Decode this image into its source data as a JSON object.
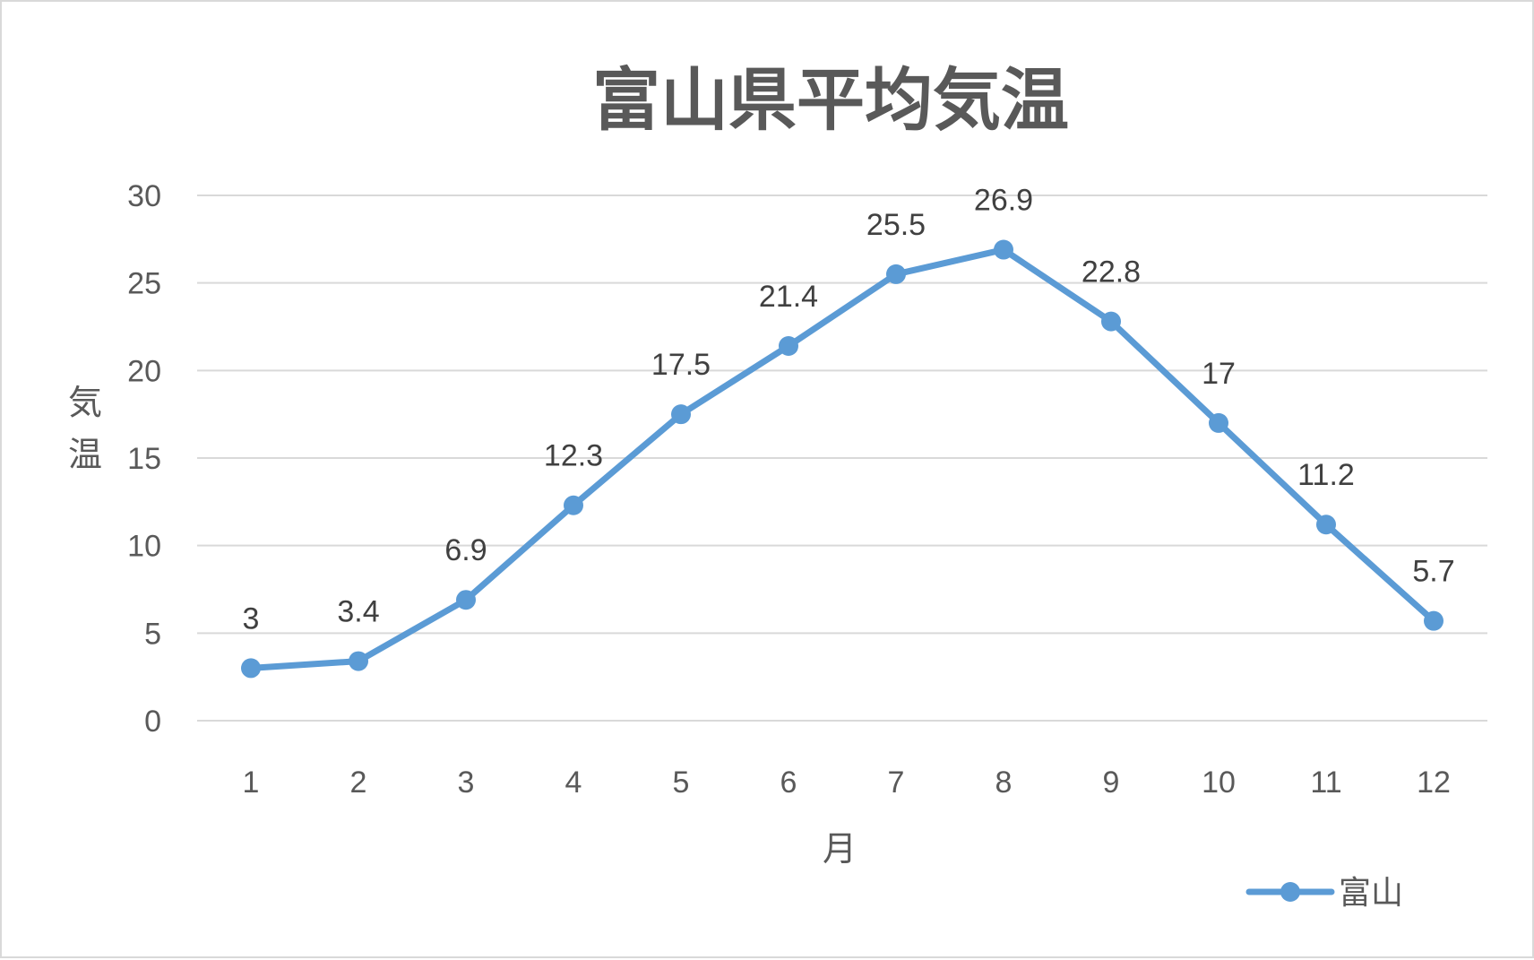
{
  "chart_data": {
    "type": "line",
    "title": "富山県平均気温",
    "xlabel": "月",
    "ylabel": "気温",
    "categories": [
      "1",
      "2",
      "3",
      "4",
      "5",
      "6",
      "7",
      "8",
      "9",
      "10",
      "11",
      "12"
    ],
    "series": [
      {
        "name": "富山",
        "values": [
          3,
          3.4,
          6.9,
          12.3,
          17.5,
          21.4,
          25.5,
          26.9,
          22.8,
          17,
          11.2,
          5.7
        ],
        "color": "#5b9bd5"
      }
    ],
    "ylim": [
      0,
      30
    ],
    "yticks": [
      0,
      5,
      10,
      15,
      20,
      25,
      30
    ],
    "grid": true,
    "data_labels": true,
    "legend_position": "bottom-right"
  }
}
